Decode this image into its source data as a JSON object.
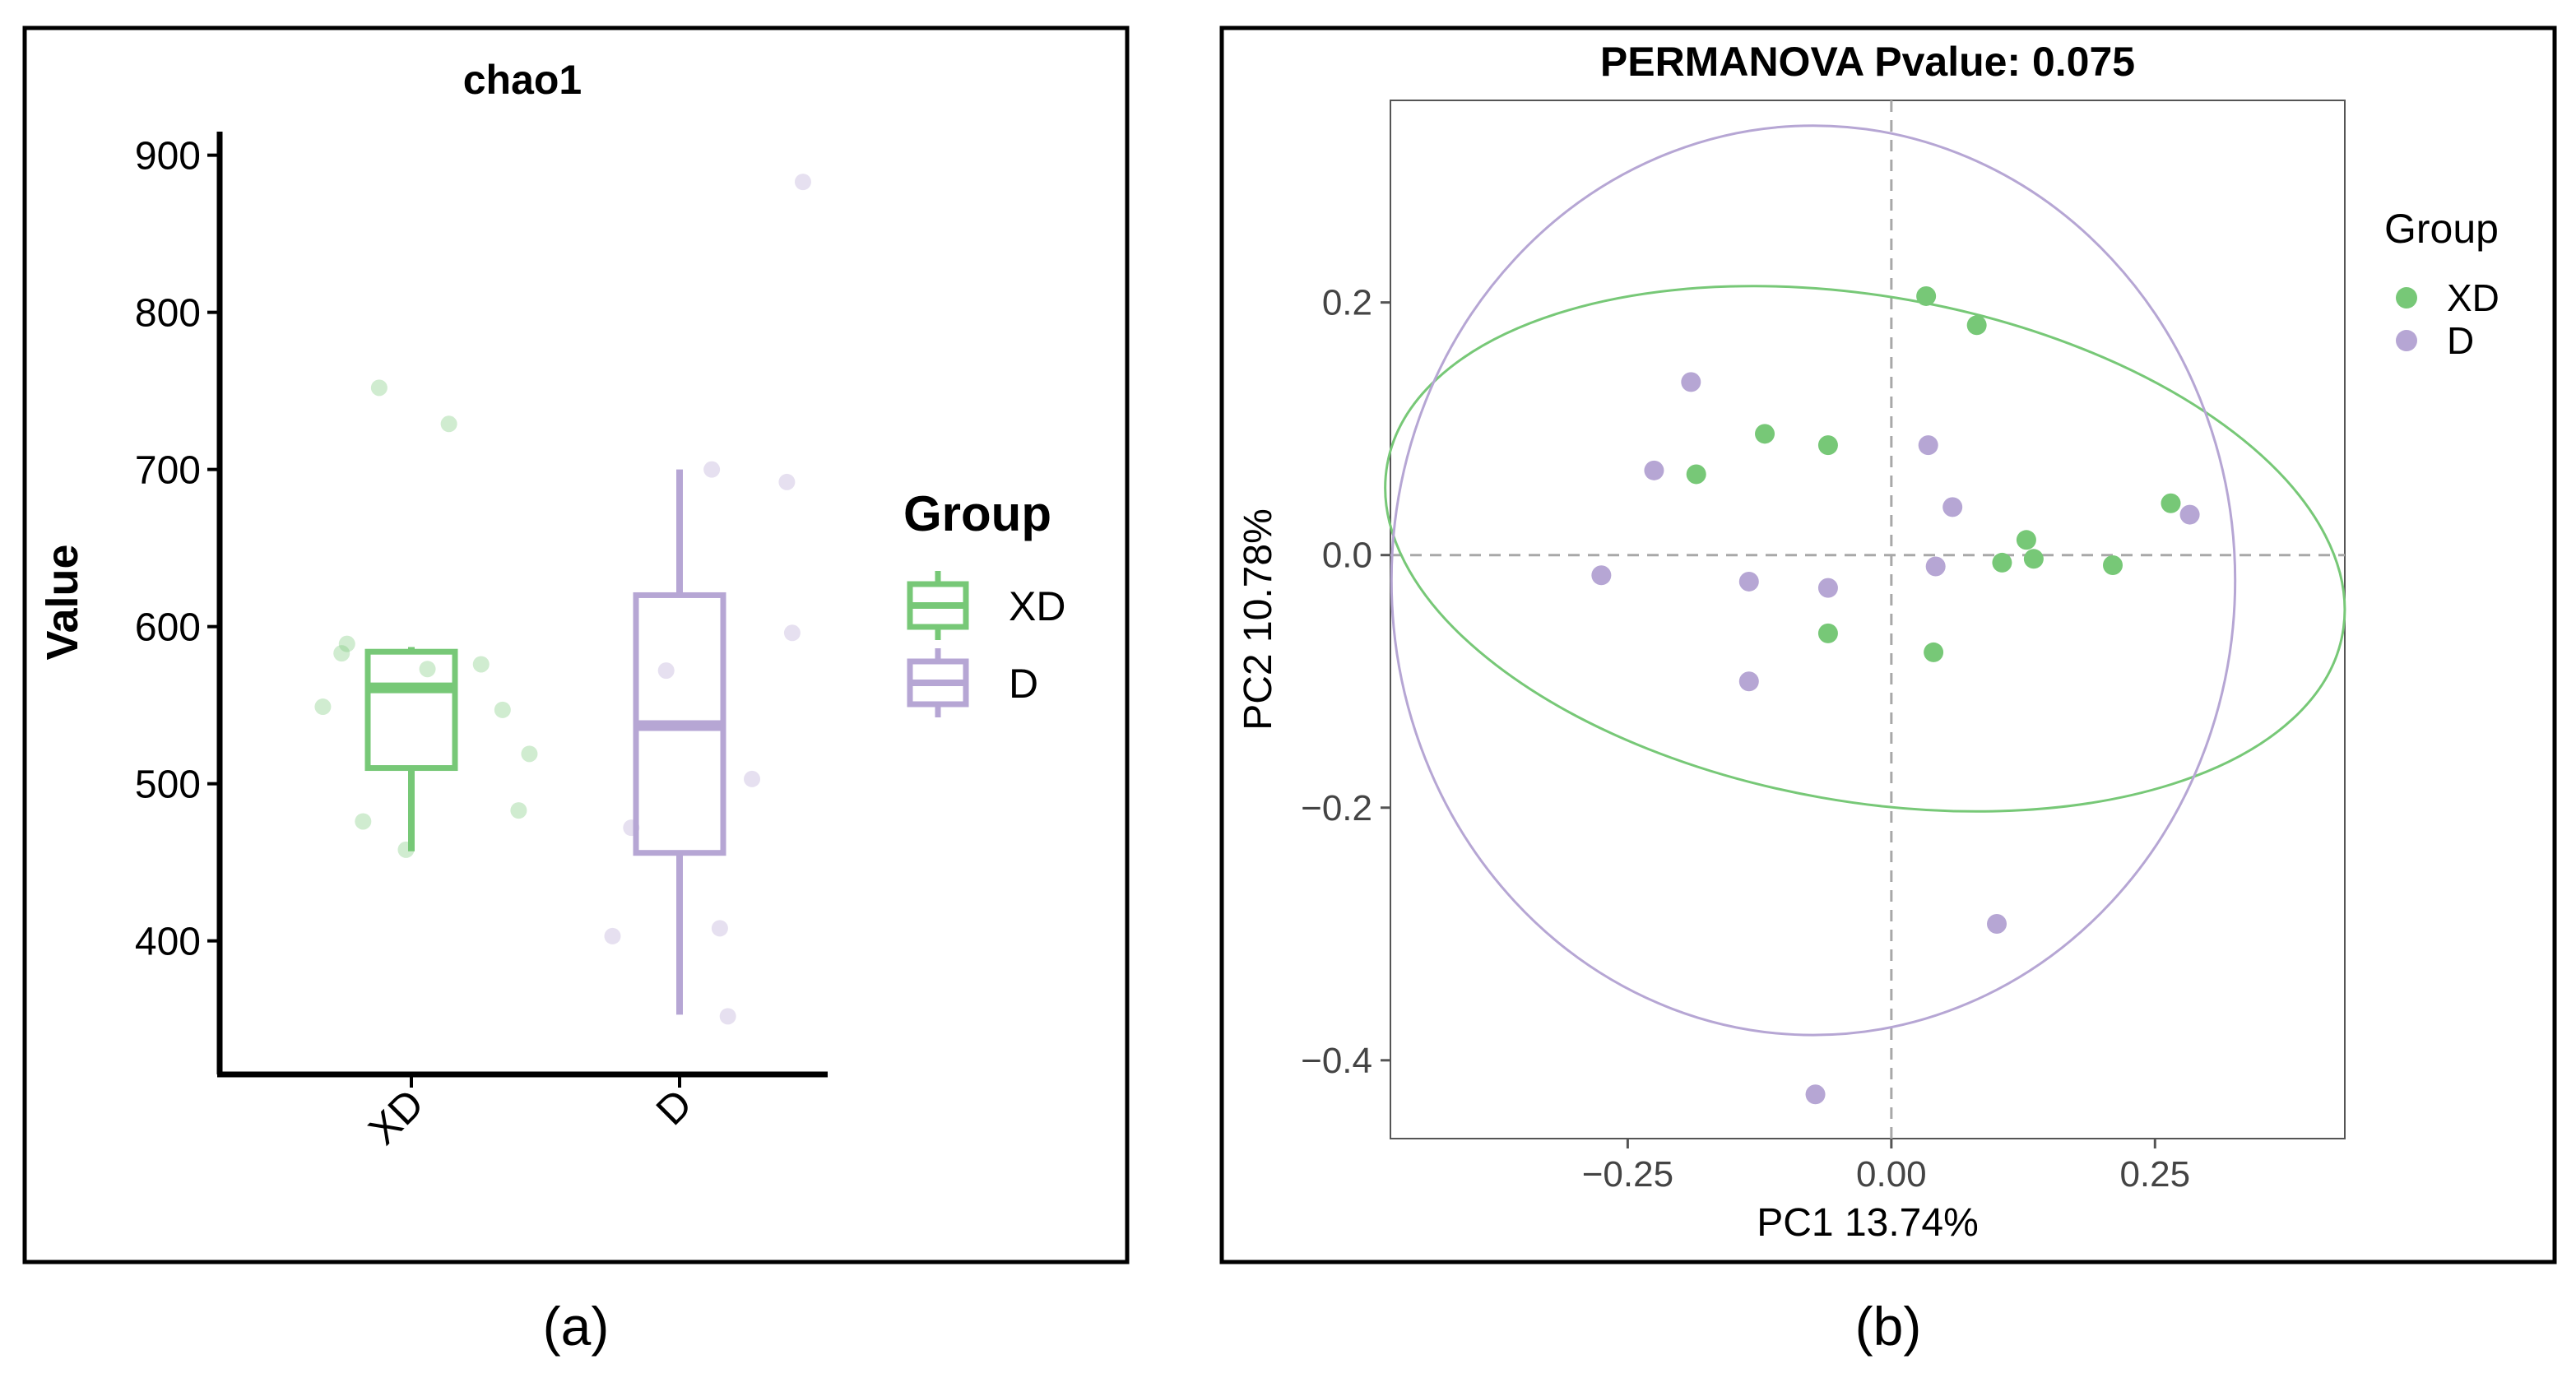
{
  "colors": {
    "xd": "#77c877",
    "d": "#b6a6d4",
    "frame": "#000000",
    "grid": "#a8a8a8"
  },
  "chart_data": [
    {
      "type": "box",
      "title": "chao1",
      "xlabel": "",
      "ylabel": "Value",
      "ylim": [
        315,
        915
      ],
      "yticks": [
        400,
        500,
        600,
        700,
        800,
        900
      ],
      "categories": [
        "XD",
        "D"
      ],
      "legend": {
        "title": "Group",
        "entries": [
          "XD",
          "D"
        ],
        "placement": "right"
      },
      "series": [
        {
          "name": "XD",
          "color": "xd",
          "box": {
            "min": 457,
            "q1": 510,
            "median": 561,
            "q3": 584,
            "max": 587
          },
          "points": [
            {
              "x": -0.33,
              "y": 549
            },
            {
              "x": -0.26,
              "y": 583
            },
            {
              "x": -0.24,
              "y": 589
            },
            {
              "x": -0.18,
              "y": 476
            },
            {
              "x": -0.12,
              "y": 752
            },
            {
              "x": -0.02,
              "y": 458
            },
            {
              "x": 0.06,
              "y": 573
            },
            {
              "x": 0.14,
              "y": 729
            },
            {
              "x": 0.26,
              "y": 576
            },
            {
              "x": 0.34,
              "y": 547
            },
            {
              "x": 0.4,
              "y": 483
            },
            {
              "x": 0.44,
              "y": 519
            }
          ]
        },
        {
          "name": "D",
          "color": "d",
          "box": {
            "min": 353,
            "q1": 456,
            "median": 537,
            "q3": 620,
            "max": 700
          },
          "points": [
            {
              "x": -0.25,
              "y": 403
            },
            {
              "x": -0.18,
              "y": 472
            },
            {
              "x": -0.05,
              "y": 572
            },
            {
              "x": 0.12,
              "y": 700
            },
            {
              "x": 0.15,
              "y": 408
            },
            {
              "x": 0.18,
              "y": 352
            },
            {
              "x": 0.27,
              "y": 503
            },
            {
              "x": 0.4,
              "y": 692
            },
            {
              "x": 0.42,
              "y": 596
            },
            {
              "x": 0.46,
              "y": 883
            }
          ]
        }
      ]
    },
    {
      "type": "scatter",
      "title": "PERMANOVA Pvalue: 0.075",
      "xlabel": "PC1 13.74%",
      "ylabel": "PC2 10.78%",
      "xlim": [
        -0.475,
        0.43
      ],
      "ylim": [
        -0.462,
        0.36
      ],
      "xticks": [
        -0.25,
        0.0,
        0.25
      ],
      "xtick_labels": [
        "−0.25",
        "0.00",
        "0.25"
      ],
      "yticks": [
        0.2,
        0.0,
        -0.2,
        -0.4
      ],
      "ytick_labels": [
        "0.2",
        "0.0",
        "−0.2",
        "−0.4"
      ],
      "reference_lines": {
        "x": 0,
        "y": 0
      },
      "legend": {
        "title": "Group",
        "entries": [
          "XD",
          "D"
        ],
        "placement": "right"
      },
      "series": [
        {
          "name": "XD",
          "color": "xd",
          "points": [
            [
              0.033,
              0.205
            ],
            [
              0.081,
              0.182
            ],
            [
              -0.12,
              0.096
            ],
            [
              -0.06,
              0.087
            ],
            [
              -0.185,
              0.064
            ],
            [
              0.265,
              0.041
            ],
            [
              0.128,
              0.012
            ],
            [
              0.105,
              -0.006
            ],
            [
              0.135,
              -0.003
            ],
            [
              0.21,
              -0.008
            ],
            [
              -0.06,
              -0.062
            ],
            [
              0.04,
              -0.077
            ]
          ],
          "ellipse": {
            "cx": -0.025,
            "cy": 0.005,
            "rx": 0.46,
            "ry": 0.2,
            "angle_deg": -10
          }
        },
        {
          "name": "D",
          "color": "d",
          "points": [
            [
              -0.19,
              0.137
            ],
            [
              -0.225,
              0.067
            ],
            [
              0.035,
              0.087
            ],
            [
              0.058,
              0.038
            ],
            [
              0.283,
              0.032
            ],
            [
              -0.275,
              -0.016
            ],
            [
              -0.135,
              -0.021
            ],
            [
              -0.06,
              -0.026
            ],
            [
              0.042,
              -0.009
            ],
            [
              -0.135,
              -0.1
            ],
            [
              0.1,
              -0.292
            ],
            [
              -0.072,
              -0.427
            ]
          ],
          "ellipse": {
            "cx": -0.074,
            "cy": -0.02,
            "rx": 0.4,
            "ry": 0.36,
            "angle_deg": 0
          }
        }
      ]
    }
  ],
  "captions": {
    "a": "(a)",
    "b": "(b)"
  }
}
